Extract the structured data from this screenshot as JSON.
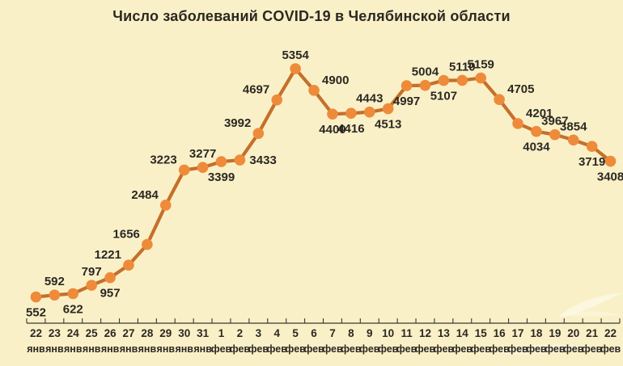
{
  "title": "Число заболеваний COVID-19 в Челябинской области",
  "chart_data": {
    "type": "line",
    "title": "Число заболеваний COVID-19 в Челябинской области",
    "categories": [
      "22 янв",
      "23 янв",
      "24 янв",
      "25 янв",
      "26 янв",
      "27 янв",
      "28 янв",
      "29 янв",
      "30 янв",
      "31 янв",
      "1 фев",
      "2 фев",
      "3 фев",
      "4 фев",
      "5 фев",
      "6 фев",
      "7 фев",
      "8 фев",
      "9 фев",
      "10 фев",
      "11 фев",
      "12 фев",
      "13 фев",
      "14 фев",
      "15 фев",
      "16 фев",
      "17 фев",
      "18 фев",
      "19 фев",
      "20 фев",
      "21 фев",
      "22 фев"
    ],
    "values": [
      552,
      592,
      622,
      797,
      957,
      1221,
      1656,
      2484,
      3223,
      3277,
      3399,
      3433,
      3992,
      4697,
      5354,
      4900,
      4400,
      4416,
      4443,
      4513,
      4997,
      5004,
      5107,
      5110,
      5159,
      4705,
      4201,
      4034,
      3967,
      3854,
      3719,
      3408
    ],
    "label_positions": [
      "below",
      "above",
      "below",
      "above",
      "below",
      "above-left",
      "above-left",
      "above-left",
      "above-left",
      "above",
      "below",
      "right",
      "above-left",
      "above-left",
      "above",
      "above-right",
      "below",
      "below",
      "above",
      "below",
      "below",
      "above",
      "below",
      "above",
      "above",
      "above-right",
      "above-right",
      "below",
      "above",
      "above",
      "below",
      "below"
    ],
    "xlabel": "",
    "ylabel": "",
    "ylim": [
      0,
      5950
    ],
    "grid": false,
    "legend": "none",
    "colors": {
      "background": "#faf0c7",
      "line": "#c4702b",
      "marker": "#ee8b3a",
      "text": "#2b2823",
      "axis": "#3c372e"
    }
  }
}
